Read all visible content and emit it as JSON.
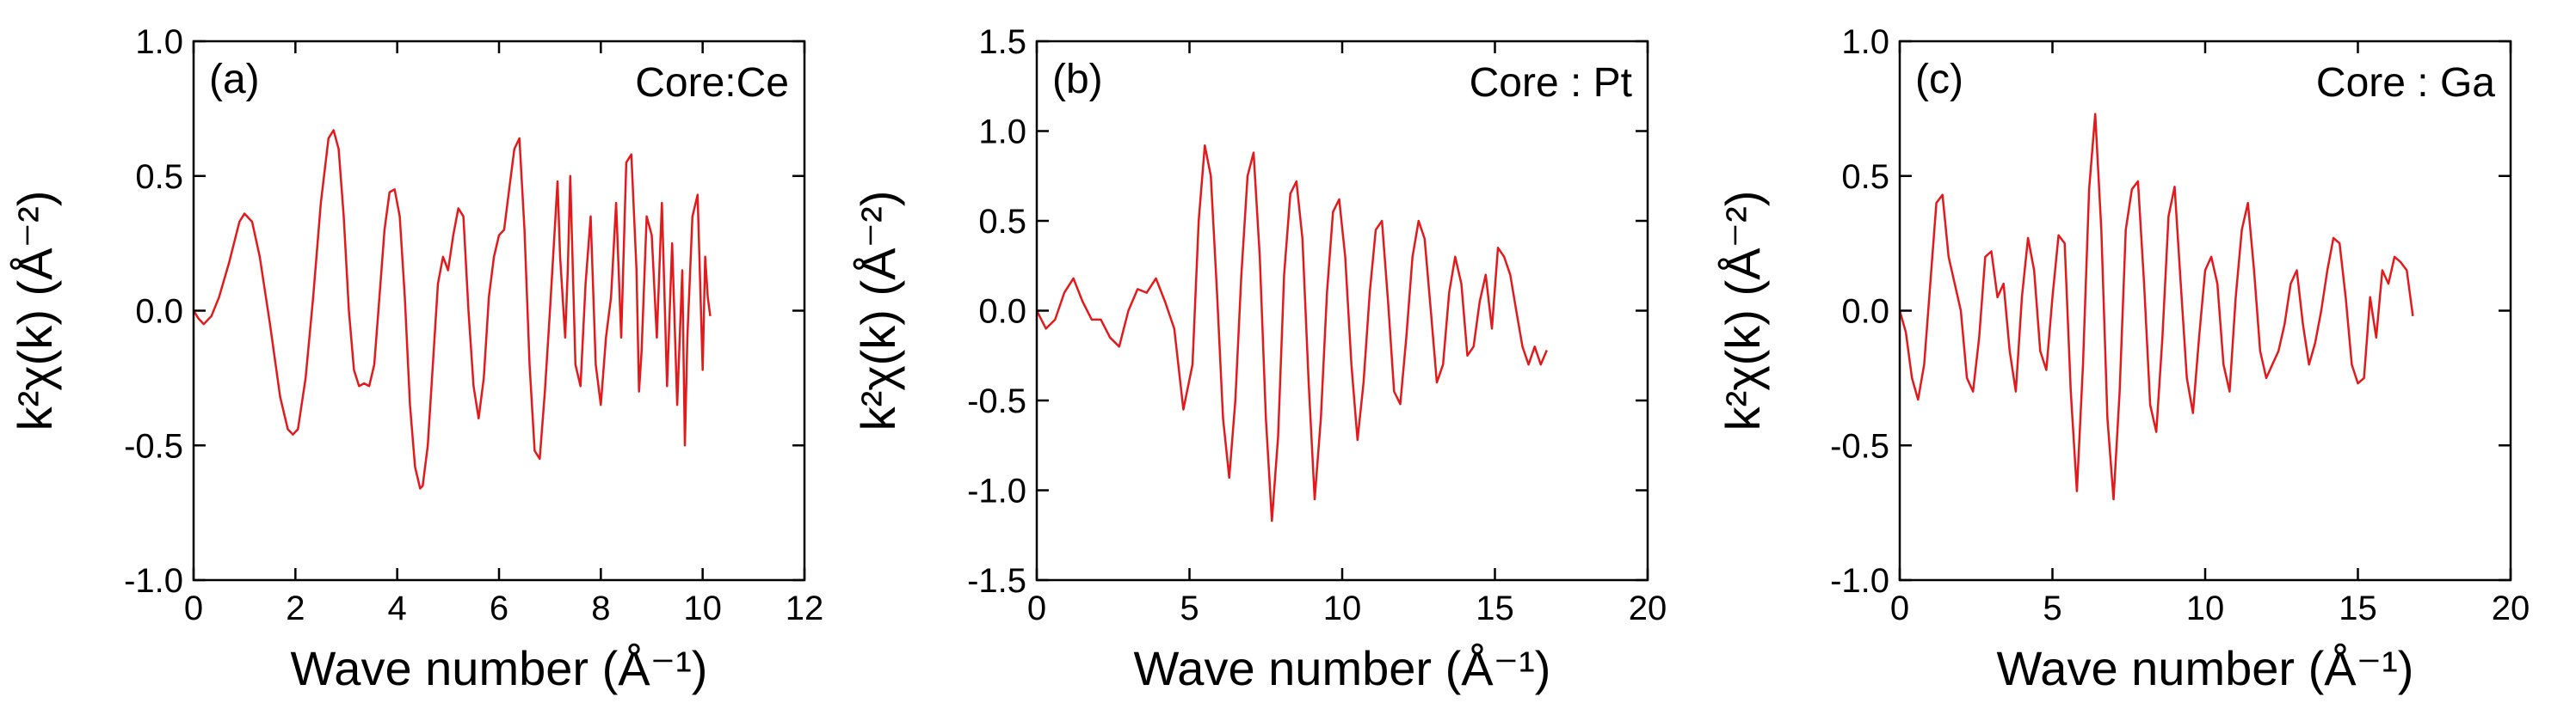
{
  "colors": {
    "line": "#e31a1c",
    "axis": "#000000"
  },
  "chart_data": [
    {
      "type": "line",
      "panel_label": "(a)",
      "annotation": "Core:Ce",
      "xlabel": "Wave number (Å⁻¹)",
      "ylabel": "k²χ(k) (Å⁻²)",
      "xlim": [
        0,
        12
      ],
      "ylim": [
        -1.0,
        1.0
      ],
      "xticks": [
        0,
        2,
        4,
        6,
        8,
        10,
        12
      ],
      "xtick_labels": [
        "0",
        "2",
        "4",
        "6",
        "8",
        "10",
        "12"
      ],
      "yticks": [
        -1.0,
        -0.5,
        0.0,
        0.5,
        1.0
      ],
      "ytick_labels": [
        "-1.0",
        "-0.5",
        "0.0",
        "0.5",
        "1.0"
      ],
      "series": [
        {
          "name": "Ce",
          "x": [
            0,
            0.1,
            0.2,
            0.35,
            0.5,
            0.7,
            0.9,
            1.0,
            1.15,
            1.3,
            1.5,
            1.7,
            1.85,
            1.95,
            2.05,
            2.2,
            2.35,
            2.5,
            2.65,
            2.75,
            2.85,
            2.95,
            3.05,
            3.15,
            3.25,
            3.35,
            3.45,
            3.55,
            3.65,
            3.75,
            3.85,
            3.95,
            4.05,
            4.15,
            4.25,
            4.35,
            4.45,
            4.5,
            4.6,
            4.7,
            4.8,
            4.9,
            5.0,
            5.1,
            5.2,
            5.3,
            5.4,
            5.5,
            5.6,
            5.7,
            5.8,
            5.9,
            6.0,
            6.1,
            6.2,
            6.3,
            6.4,
            6.5,
            6.6,
            6.7,
            6.8,
            6.9,
            7.0,
            7.1,
            7.15,
            7.2,
            7.3,
            7.35,
            7.4,
            7.5,
            7.6,
            7.7,
            7.8,
            7.9,
            8.0,
            8.1,
            8.2,
            8.3,
            8.4,
            8.5,
            8.6,
            8.7,
            8.75,
            8.8,
            8.9,
            9.0,
            9.1,
            9.2,
            9.3,
            9.4,
            9.5,
            9.6,
            9.65,
            9.7,
            9.8,
            9.9,
            10.0,
            10.05,
            10.1,
            10.15
          ],
          "y": [
            0.0,
            -0.03,
            -0.05,
            -0.02,
            0.05,
            0.18,
            0.33,
            0.36,
            0.33,
            0.2,
            -0.05,
            -0.32,
            -0.44,
            -0.46,
            -0.44,
            -0.25,
            0.05,
            0.4,
            0.64,
            0.67,
            0.6,
            0.35,
            0.0,
            -0.22,
            -0.28,
            -0.27,
            -0.28,
            -0.2,
            0.05,
            0.3,
            0.44,
            0.45,
            0.35,
            0.05,
            -0.35,
            -0.58,
            -0.66,
            -0.65,
            -0.5,
            -0.2,
            0.1,
            0.2,
            0.15,
            0.28,
            0.38,
            0.35,
            0.0,
            -0.28,
            -0.4,
            -0.25,
            0.05,
            0.2,
            0.28,
            0.3,
            0.45,
            0.6,
            0.64,
            0.3,
            -0.2,
            -0.52,
            -0.55,
            -0.3,
            0.0,
            0.32,
            0.48,
            0.2,
            -0.1,
            0.15,
            0.5,
            -0.2,
            -0.28,
            0.1,
            0.35,
            -0.2,
            -0.35,
            -0.1,
            0.05,
            0.4,
            -0.1,
            0.55,
            0.58,
            0.15,
            -0.3,
            -0.15,
            0.35,
            0.28,
            -0.1,
            0.4,
            -0.28,
            0.25,
            -0.35,
            0.15,
            -0.5,
            -0.1,
            0.35,
            0.43,
            -0.22,
            0.2,
            0.05,
            -0.02
          ]
        }
      ]
    },
    {
      "type": "line",
      "panel_label": "(b)",
      "annotation": "Core : Pt",
      "xlabel": "Wave number (Å⁻¹)",
      "ylabel": "k²χ(k) (Å⁻²)",
      "xlim": [
        0,
        20
      ],
      "ylim": [
        -1.5,
        1.5
      ],
      "xticks": [
        0,
        5,
        10,
        15,
        20
      ],
      "xtick_labels": [
        "0",
        "5",
        "10",
        "15",
        "20"
      ],
      "yticks": [
        -1.5,
        -1.0,
        -0.5,
        0.0,
        0.5,
        1.0,
        1.5
      ],
      "ytick_labels": [
        "-1.5",
        "-1.0",
        "-0.5",
        "0.0",
        "0.5",
        "1.0",
        "1.5"
      ],
      "series": [
        {
          "name": "Pt",
          "x": [
            0,
            0.3,
            0.6,
            0.9,
            1.2,
            1.5,
            1.8,
            2.1,
            2.4,
            2.7,
            3.0,
            3.3,
            3.6,
            3.9,
            4.2,
            4.5,
            4.8,
            5.1,
            5.3,
            5.5,
            5.7,
            5.9,
            6.1,
            6.3,
            6.5,
            6.7,
            6.9,
            7.1,
            7.3,
            7.5,
            7.7,
            7.9,
            8.1,
            8.3,
            8.5,
            8.7,
            8.9,
            9.1,
            9.3,
            9.5,
            9.7,
            9.9,
            10.1,
            10.3,
            10.5,
            10.7,
            10.9,
            11.1,
            11.3,
            11.5,
            11.7,
            11.9,
            12.1,
            12.3,
            12.5,
            12.7,
            12.9,
            13.1,
            13.3,
            13.5,
            13.7,
            13.9,
            14.1,
            14.3,
            14.5,
            14.7,
            14.9,
            15.1,
            15.3,
            15.5,
            15.7,
            15.9,
            16.1,
            16.3,
            16.5,
            16.7
          ],
          "y": [
            0.0,
            -0.1,
            -0.05,
            0.1,
            0.18,
            0.05,
            -0.05,
            -0.05,
            -0.15,
            -0.2,
            0.0,
            0.12,
            0.1,
            0.18,
            0.05,
            -0.1,
            -0.55,
            -0.3,
            0.5,
            0.92,
            0.75,
            0.1,
            -0.6,
            -0.93,
            -0.5,
            0.2,
            0.75,
            0.88,
            0.3,
            -0.6,
            -1.17,
            -0.7,
            0.2,
            0.65,
            0.72,
            0.4,
            -0.4,
            -1.05,
            -0.6,
            0.1,
            0.55,
            0.62,
            0.3,
            -0.3,
            -0.72,
            -0.4,
            0.1,
            0.45,
            0.5,
            0.05,
            -0.45,
            -0.52,
            -0.15,
            0.3,
            0.5,
            0.4,
            0.0,
            -0.4,
            -0.3,
            0.1,
            0.3,
            0.15,
            -0.25,
            -0.2,
            0.05,
            0.2,
            -0.1,
            0.35,
            0.3,
            0.2,
            0.0,
            -0.2,
            -0.3,
            -0.2,
            -0.3,
            -0.22
          ]
        }
      ]
    },
    {
      "type": "line",
      "panel_label": "(c)",
      "annotation": "Core : Ga",
      "xlabel": "Wave number (Å⁻¹)",
      "ylabel": "k²χ(k) (Å⁻²)",
      "xlim": [
        0,
        20
      ],
      "ylim": [
        -1.0,
        1.0
      ],
      "xticks": [
        0,
        5,
        10,
        15,
        20
      ],
      "xtick_labels": [
        "0",
        "5",
        "10",
        "15",
        "20"
      ],
      "yticks": [
        -1.0,
        -0.5,
        0.0,
        0.5,
        1.0
      ],
      "ytick_labels": [
        "-1.0",
        "-0.5",
        "0.0",
        "0.5",
        "1.0"
      ],
      "series": [
        {
          "name": "Ga",
          "x": [
            0,
            0.2,
            0.4,
            0.6,
            0.8,
            1.0,
            1.2,
            1.4,
            1.6,
            1.8,
            2.0,
            2.2,
            2.4,
            2.6,
            2.8,
            3.0,
            3.2,
            3.4,
            3.6,
            3.8,
            4.0,
            4.2,
            4.4,
            4.6,
            4.8,
            5.0,
            5.2,
            5.4,
            5.6,
            5.8,
            6.0,
            6.2,
            6.4,
            6.6,
            6.8,
            7.0,
            7.2,
            7.4,
            7.6,
            7.8,
            8.0,
            8.2,
            8.4,
            8.6,
            8.8,
            9.0,
            9.2,
            9.4,
            9.6,
            9.8,
            10.0,
            10.2,
            10.4,
            10.6,
            10.8,
            11.0,
            11.2,
            11.4,
            11.6,
            11.8,
            12.0,
            12.2,
            12.4,
            12.6,
            12.8,
            13.0,
            13.2,
            13.4,
            13.6,
            13.8,
            14.0,
            14.2,
            14.4,
            14.6,
            14.8,
            15.0,
            15.2,
            15.4,
            15.6,
            15.8,
            16.0,
            16.2,
            16.4,
            16.6,
            16.8
          ],
          "y": [
            0.0,
            -0.08,
            -0.25,
            -0.33,
            -0.2,
            0.1,
            0.4,
            0.43,
            0.2,
            0.1,
            0.0,
            -0.25,
            -0.3,
            -0.1,
            0.2,
            0.22,
            0.05,
            0.1,
            -0.15,
            -0.3,
            0.05,
            0.27,
            0.15,
            -0.15,
            -0.22,
            0.05,
            0.28,
            0.25,
            -0.3,
            -0.67,
            -0.2,
            0.45,
            0.73,
            0.3,
            -0.4,
            -0.7,
            -0.3,
            0.3,
            0.45,
            0.48,
            0.1,
            -0.35,
            -0.45,
            -0.1,
            0.35,
            0.46,
            0.1,
            -0.25,
            -0.38,
            -0.1,
            0.15,
            0.2,
            0.1,
            -0.2,
            -0.3,
            0.05,
            0.3,
            0.4,
            0.15,
            -0.15,
            -0.25,
            -0.2,
            -0.15,
            -0.05,
            0.1,
            0.15,
            -0.05,
            -0.2,
            -0.12,
            0.0,
            0.15,
            0.27,
            0.25,
            0.05,
            -0.2,
            -0.27,
            -0.25,
            0.05,
            -0.1,
            0.15,
            0.1,
            0.2,
            0.18,
            0.15,
            -0.02
          ]
        }
      ]
    }
  ]
}
